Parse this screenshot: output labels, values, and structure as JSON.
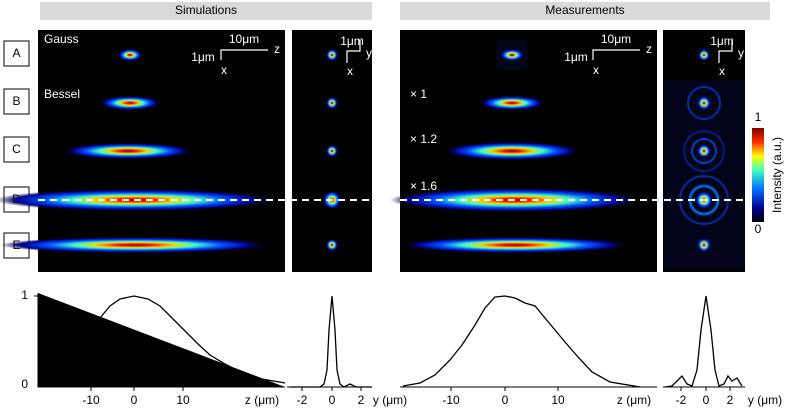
{
  "headers": [
    "Simulations",
    "Measurements"
  ],
  "row_labels": [
    "A",
    "B",
    "C",
    "D",
    "E"
  ],
  "simulation_labels": [
    "Gauss",
    "Bessel"
  ],
  "measurement_labels": [
    "× 1",
    "× 1.2",
    "× 1.6"
  ],
  "scale_bars": {
    "long": "10μm",
    "short": "1μm",
    "z": "z",
    "x": "x",
    "y": "y"
  },
  "colorbar": {
    "title": "Intensity (a.u.)",
    "max": "1",
    "min": "0"
  },
  "profiles": {
    "y_max": "1",
    "y_min": "0",
    "z_ticks": [
      "-10",
      "0",
      "10"
    ],
    "z_label": "z (μm)",
    "y_ticks": [
      "-2",
      "0",
      "2"
    ],
    "y_label": "y (μm)"
  }
}
